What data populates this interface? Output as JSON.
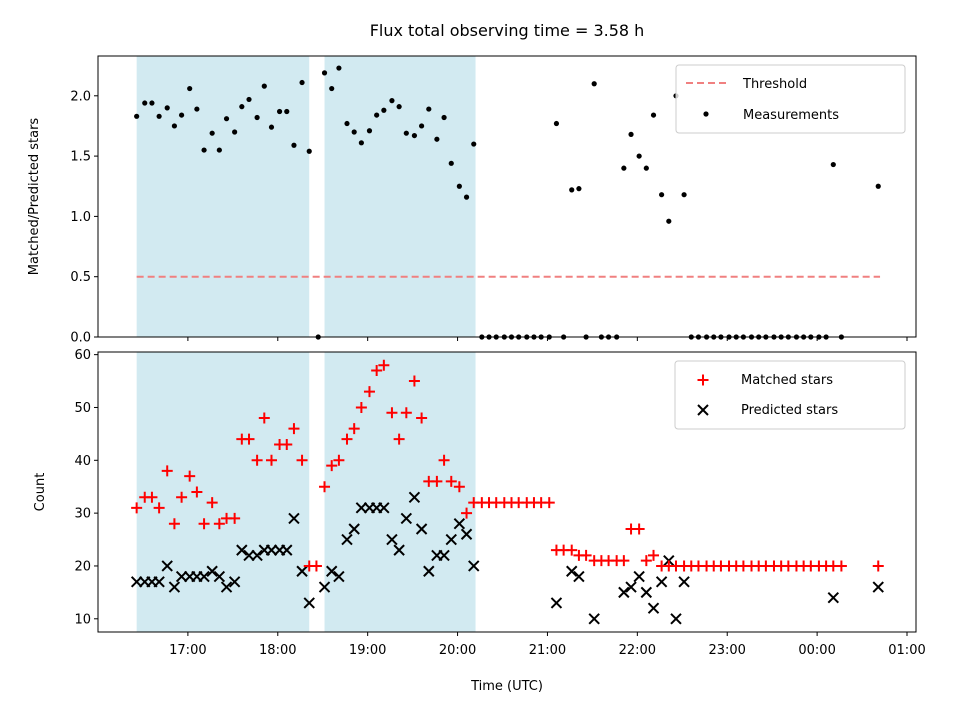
{
  "figure": {
    "title": "Flux total observing time = 3.58 h",
    "xlabel": "Time (UTC)",
    "x_ticks": [
      {
        "label": "17:00",
        "value": 17.0
      },
      {
        "label": "18:00",
        "value": 18.0
      },
      {
        "label": "19:00",
        "value": 19.0
      },
      {
        "label": "20:00",
        "value": 20.0
      },
      {
        "label": "21:00",
        "value": 21.0
      },
      {
        "label": "22:00",
        "value": 22.0
      },
      {
        "label": "23:00",
        "value": 23.0
      },
      {
        "label": "00:00",
        "value": 24.0
      },
      {
        "label": "01:00",
        "value": 25.0
      }
    ],
    "observing_windows": [
      [
        16.43,
        18.35
      ],
      [
        18.52,
        20.2
      ]
    ],
    "colors": {
      "window": "#add8e6",
      "threshold": "#f08080",
      "measurement": "#000000",
      "matched": "#ff0000",
      "predicted": "#000000"
    }
  },
  "chart_data": [
    {
      "type": "scatter",
      "ylabel": "Matched/Predicted stars",
      "xlim": [
        16.0,
        25.1
      ],
      "ylim": [
        0.0,
        2.33
      ],
      "y_ticks": [
        "0.0",
        "0.5",
        "1.0",
        "1.5",
        "2.0"
      ],
      "threshold": 0.5,
      "threshold_range": [
        16.43,
        24.7
      ],
      "legend": {
        "position": "upper right",
        "items": [
          {
            "label": "Threshold",
            "kind": "dashed-line"
          },
          {
            "label": "Measurements",
            "kind": "dot"
          }
        ]
      },
      "series": [
        {
          "name": "Measurements",
          "x": [
            16.43,
            16.52,
            16.6,
            16.68,
            16.77,
            16.85,
            16.93,
            17.02,
            17.1,
            17.18,
            17.27,
            17.35,
            17.43,
            17.52,
            17.6,
            17.68,
            17.77,
            17.85,
            17.93,
            18.02,
            18.1,
            18.18,
            18.27,
            18.35,
            18.45,
            18.52,
            18.6,
            18.68,
            18.77,
            18.85,
            18.93,
            19.02,
            19.1,
            19.18,
            19.27,
            19.35,
            19.43,
            19.52,
            19.6,
            19.68,
            19.77,
            19.85,
            19.93,
            20.02,
            20.1,
            20.18,
            20.27,
            20.35,
            20.43,
            20.52,
            20.6,
            20.68,
            20.77,
            20.85,
            20.93,
            21.02,
            21.1,
            21.18,
            21.27,
            21.35,
            21.43,
            21.52,
            21.6,
            21.68,
            21.77,
            21.85,
            21.93,
            22.02,
            22.1,
            22.18,
            22.27,
            22.35,
            22.43,
            22.52,
            22.6,
            22.68,
            22.77,
            22.85,
            22.93,
            23.02,
            23.1,
            23.18,
            23.27,
            23.35,
            23.43,
            23.52,
            23.6,
            23.68,
            23.77,
            23.85,
            23.93,
            24.02,
            24.1,
            24.18,
            24.27,
            24.68
          ],
          "values": [
            1.83,
            1.94,
            1.94,
            1.83,
            1.9,
            1.75,
            1.84,
            2.06,
            1.89,
            1.55,
            1.69,
            1.55,
            1.81,
            1.7,
            1.91,
            1.97,
            1.82,
            2.08,
            1.74,
            1.87,
            1.87,
            1.59,
            2.11,
            1.54,
            0.0,
            2.19,
            2.06,
            2.23,
            1.77,
            1.7,
            1.61,
            1.71,
            1.84,
            1.88,
            1.96,
            1.91,
            1.69,
            1.67,
            1.75,
            1.89,
            1.64,
            1.82,
            1.44,
            1.25,
            1.16,
            1.6,
            0.0,
            0.0,
            0.0,
            0.0,
            0.0,
            0.0,
            0.0,
            0.0,
            0.0,
            0.0,
            1.77,
            0.0,
            1.22,
            1.23,
            0.0,
            2.1,
            0.0,
            0.0,
            0.0,
            1.4,
            1.68,
            1.5,
            1.4,
            1.84,
            1.18,
            0.96,
            2.0,
            1.18,
            0.0,
            0.0,
            0.0,
            0.0,
            0.0,
            0.0,
            0.0,
            0.0,
            0.0,
            0.0,
            0.0,
            0.0,
            0.0,
            0.0,
            0.0,
            0.0,
            0.0,
            0.0,
            0.0,
            1.43,
            0.0,
            1.25
          ]
        }
      ]
    },
    {
      "type": "scatter",
      "ylabel": "Count",
      "xlim": [
        16.0,
        25.1
      ],
      "ylim": [
        7.5,
        60.5
      ],
      "y_ticks": [
        "10",
        "20",
        "30",
        "40",
        "50",
        "60"
      ],
      "legend": {
        "position": "upper right",
        "items": [
          {
            "label": "Matched stars",
            "kind": "plus"
          },
          {
            "label": "Predicted stars",
            "kind": "cross"
          }
        ]
      },
      "series": [
        {
          "name": "Matched stars",
          "marker": "plus",
          "x": [
            16.43,
            16.52,
            16.6,
            16.68,
            16.77,
            16.85,
            16.93,
            17.02,
            17.1,
            17.18,
            17.27,
            17.35,
            17.43,
            17.52,
            17.6,
            17.68,
            17.77,
            17.85,
            17.93,
            18.02,
            18.1,
            18.18,
            18.27,
            18.35,
            18.43,
            18.52,
            18.6,
            18.68,
            18.77,
            18.85,
            18.93,
            19.02,
            19.1,
            19.18,
            19.27,
            19.35,
            19.43,
            19.52,
            19.6,
            19.68,
            19.77,
            19.85,
            19.93,
            20.02,
            20.1,
            20.18,
            20.27,
            20.35,
            20.43,
            20.52,
            20.6,
            20.68,
            20.77,
            20.85,
            20.93,
            21.02,
            21.1,
            21.18,
            21.27,
            21.35,
            21.43,
            21.52,
            21.6,
            21.68,
            21.77,
            21.85,
            21.93,
            22.02,
            22.1,
            22.18,
            22.27,
            22.35,
            22.43,
            22.52,
            22.6,
            22.68,
            22.77,
            22.85,
            22.93,
            23.02,
            23.1,
            23.18,
            23.27,
            23.35,
            23.43,
            23.52,
            23.6,
            23.68,
            23.77,
            23.85,
            23.93,
            24.02,
            24.1,
            24.18,
            24.27,
            24.68
          ],
          "values": [
            31,
            33,
            33,
            31,
            38,
            28,
            33,
            37,
            34,
            28,
            32,
            28,
            29,
            29,
            44,
            44,
            40,
            48,
            40,
            43,
            43,
            46,
            40,
            20,
            20,
            35,
            39,
            40,
            44,
            46,
            50,
            53,
            57,
            58,
            49,
            44,
            49,
            55,
            48,
            36,
            36,
            40,
            36,
            35,
            30,
            32,
            32,
            32,
            32,
            32,
            32,
            32,
            32,
            32,
            32,
            32,
            23,
            23,
            23,
            22,
            22,
            21,
            21,
            21,
            21,
            21,
            27,
            27,
            21,
            22,
            20,
            20,
            20,
            20,
            20,
            20,
            20,
            20,
            20,
            20,
            20,
            20,
            20,
            20,
            20,
            20,
            20,
            20,
            20,
            20,
            20,
            20,
            20,
            20,
            20,
            20
          ]
        },
        {
          "name": "Predicted stars",
          "marker": "cross",
          "x": [
            16.43,
            16.52,
            16.6,
            16.68,
            16.77,
            16.85,
            16.93,
            17.02,
            17.1,
            17.18,
            17.27,
            17.35,
            17.43,
            17.52,
            17.6,
            17.68,
            17.77,
            17.85,
            17.93,
            18.02,
            18.1,
            18.18,
            18.27,
            18.35,
            18.52,
            18.6,
            18.68,
            18.77,
            18.85,
            18.93,
            19.02,
            19.1,
            19.18,
            19.27,
            19.35,
            19.43,
            19.52,
            19.6,
            19.68,
            19.77,
            19.85,
            19.93,
            20.02,
            20.1,
            20.18,
            21.1,
            21.27,
            21.35,
            21.52,
            21.85,
            21.93,
            22.02,
            22.1,
            22.18,
            22.27,
            22.35,
            22.43,
            22.52,
            24.18,
            24.68
          ],
          "values": [
            17,
            17,
            17,
            17,
            20,
            16,
            18,
            18,
            18,
            18,
            19,
            18,
            16,
            17,
            23,
            22,
            22,
            23,
            23,
            23,
            23,
            29,
            19,
            13,
            16,
            19,
            18,
            25,
            27,
            31,
            31,
            31,
            31,
            25,
            23,
            29,
            33,
            27,
            19,
            22,
            22,
            25,
            28,
            26,
            20,
            13,
            19,
            18,
            10,
            15,
            16,
            18,
            15,
            12,
            17,
            21,
            10,
            17,
            14,
            16
          ]
        }
      ]
    }
  ]
}
